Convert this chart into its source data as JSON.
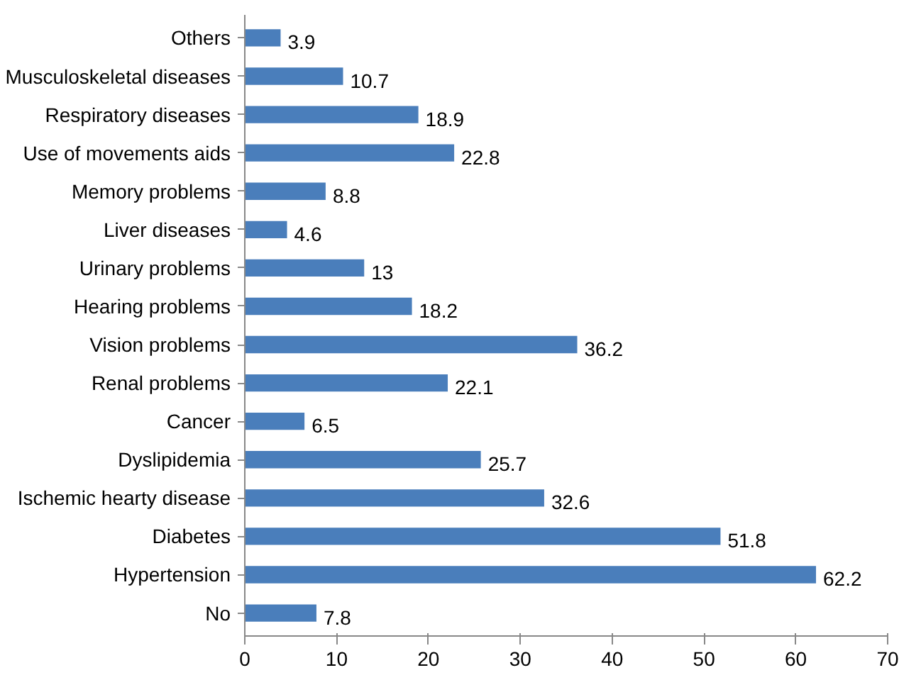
{
  "chart_data": {
    "type": "bar",
    "orientation": "horizontal",
    "categories": [
      "Others",
      "Musculoskeletal diseases",
      "Respiratory diseases",
      "Use of movements aids",
      "Memory problems",
      "Liver diseases",
      "Urinary problems",
      "Hearing problems",
      "Vision problems",
      "Renal problems",
      "Cancer",
      "Dyslipidemia",
      "Ischemic hearty disease",
      "Diabetes",
      "Hypertension",
      "No"
    ],
    "values": [
      3.9,
      10.7,
      18.9,
      22.8,
      8.8,
      4.6,
      13,
      18.2,
      36.2,
      22.1,
      6.5,
      25.7,
      32.6,
      51.8,
      62.2,
      7.8
    ],
    "value_labels": [
      "3.9",
      "10.7",
      "18.9",
      "22.8",
      "8.8",
      "4.6",
      "13",
      "18.2",
      "36.2",
      "22.1",
      "6.5",
      "25.7",
      "32.6",
      "51.8",
      "62.2",
      "7.8"
    ],
    "color": "#4a7ebb",
    "xlim": [
      0,
      70
    ],
    "xticks": [
      0,
      10,
      20,
      30,
      40,
      50,
      60,
      70
    ],
    "grid": false
  }
}
